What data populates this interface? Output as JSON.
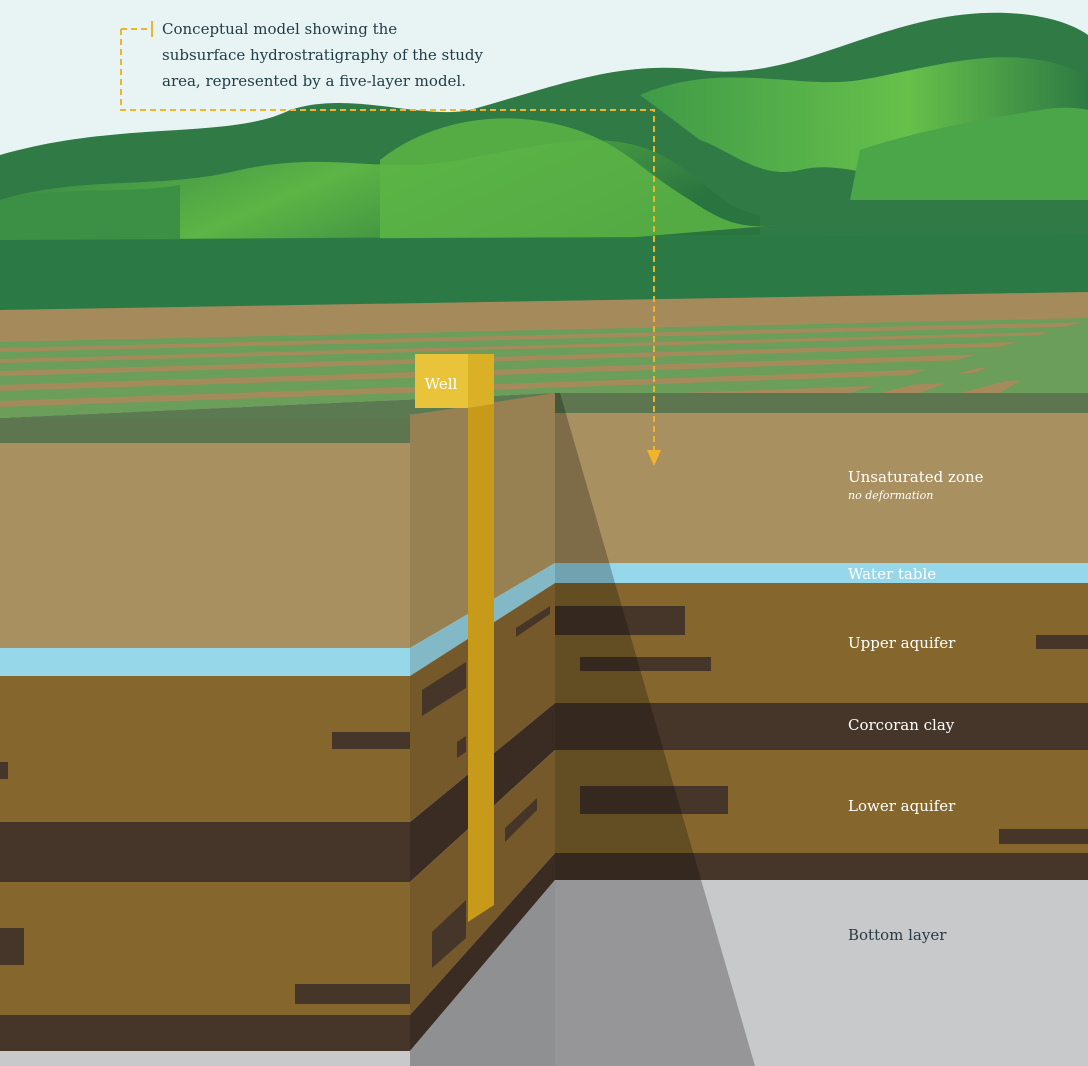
{
  "caption": {
    "line1": "Conceptual model showing the",
    "line2": "subsurface hydrostratigraphy of the study",
    "line3": "area, represented by a five-layer model."
  },
  "well_label": "Well",
  "layers": {
    "unsaturated": {
      "name": "Unsaturated zone",
      "note": "no deformation"
    },
    "water_table": "Water table",
    "upper_aquifer": "Upper aquifer",
    "corcoran_clay": "Corcoran clay",
    "lower_aquifer": "Lower aquifer",
    "bottom_layer": "Bottom layer"
  },
  "colors": {
    "sky": "#e8f4f4",
    "hill_dark": "#2e7a44",
    "hill_light": "#5cb545",
    "field_stripe": "#6a9e5a",
    "unsaturated": "#a99060",
    "water_table": "#96d8ea",
    "aquifer": "#85672e",
    "clay": "#46362a",
    "bottom": "#c8c9cb",
    "well": "#c89a1a",
    "well_cap": "#e9c43a",
    "callout": "#f0b42a"
  }
}
